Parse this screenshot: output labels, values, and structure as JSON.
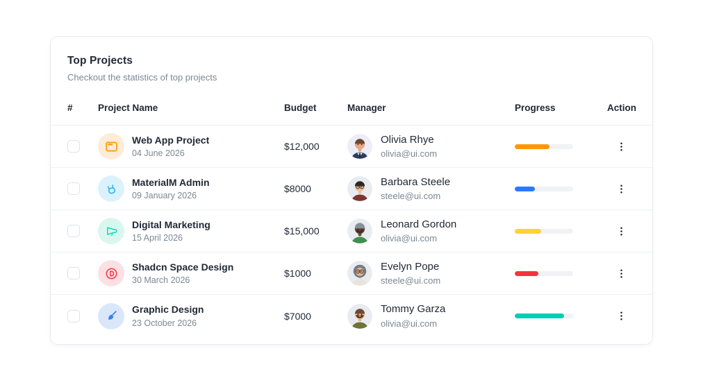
{
  "card": {
    "title": "Top Projects",
    "subtitle": "Checkout the statistics of top projects"
  },
  "table": {
    "headers": {
      "index": "#",
      "project": "Project Name",
      "budget": "Budget",
      "manager": "Manager",
      "progress": "Progress",
      "action": "Action"
    },
    "rows": [
      {
        "project": {
          "name": "Web App Project",
          "date": "04 June 2026",
          "icon": "app-window-icon",
          "icon_color": "#FF9800",
          "icon_bg": "#FEEBD8"
        },
        "budget": "$12,000",
        "manager": {
          "name": "Olivia Rhye",
          "email": "olivia@ui.com",
          "avatar": {
            "bg": "#EDEDF8",
            "skin": "#E8A884",
            "hair": "#6E4631",
            "shirt": "#2F3C5C",
            "beard": "#5A3A28",
            "features": [
              "suit"
            ]
          }
        },
        "progress": {
          "percent": 60,
          "color": "#FF9800"
        }
      },
      {
        "project": {
          "name": "MaterialM Admin",
          "date": "09 January 2026",
          "icon": "rock-hand-icon",
          "icon_color": "#29B7F4",
          "icon_bg": "#DBF2FD"
        },
        "budget": "$8000",
        "manager": {
          "name": "Barbara Steele",
          "email": "steele@ui.com",
          "avatar": {
            "bg": "#E8ECF1",
            "skin": "#EFC3A0",
            "hair": "#2E2620",
            "shirt": "#7E3430",
            "beard": "#2E2620",
            "features": [
              "glasses"
            ]
          }
        },
        "progress": {
          "percent": 35,
          "color": "#2979FF"
        }
      },
      {
        "project": {
          "name": "Digital Marketing",
          "date": "15 April 2026",
          "icon": "megaphone-icon",
          "icon_color": "#13DEB9",
          "icon_bg": "#D9F7EE"
        },
        "budget": "$15,000",
        "manager": {
          "name": "Leonard Gordon",
          "email": "olivia@ui.com",
          "avatar": {
            "bg": "#E8ECF1",
            "skin": "#6B4A3B",
            "hair": "#8A9099",
            "shirt": "#3F8F4F",
            "beard": "#3A2A20",
            "features": [
              "beanie",
              "beard"
            ]
          }
        },
        "progress": {
          "percent": 45,
          "color": "#FFD234"
        }
      },
      {
        "project": {
          "name": "Shadcn Space Design",
          "date": "30 March 2026",
          "icon": "disc-d-icon",
          "icon_color": "#F5333F",
          "icon_bg": "#FDE0E3"
        },
        "budget": "$1000",
        "manager": {
          "name": "Evelyn Pope",
          "email": "steele@ui.com",
          "avatar": {
            "bg": "#E8ECF1",
            "skin": "#E9B48E",
            "hair": "#747C86",
            "shirt": "#E8E4DD",
            "beard": "#747C86",
            "features": [
              "hijab",
              "glasses"
            ]
          }
        },
        "progress": {
          "percent": 40,
          "color": "#F5333F"
        }
      },
      {
        "project": {
          "name": "Graphic Design",
          "date": "23 October 2026",
          "icon": "paintbrush-icon",
          "icon_color": "#3D7FF0",
          "icon_bg": "#DAE7FB"
        },
        "budget": "$7000",
        "manager": {
          "name": "Tommy Garza",
          "email": "olivia@ui.com",
          "avatar": {
            "bg": "#E8ECF1",
            "skin": "#EBB68C",
            "hair": "#6E4A33",
            "shirt": "#6F7434",
            "beard": "#53361F",
            "features": [
              "beard"
            ]
          }
        },
        "progress": {
          "percent": 85,
          "color": "#00CEB6"
        }
      }
    ]
  }
}
